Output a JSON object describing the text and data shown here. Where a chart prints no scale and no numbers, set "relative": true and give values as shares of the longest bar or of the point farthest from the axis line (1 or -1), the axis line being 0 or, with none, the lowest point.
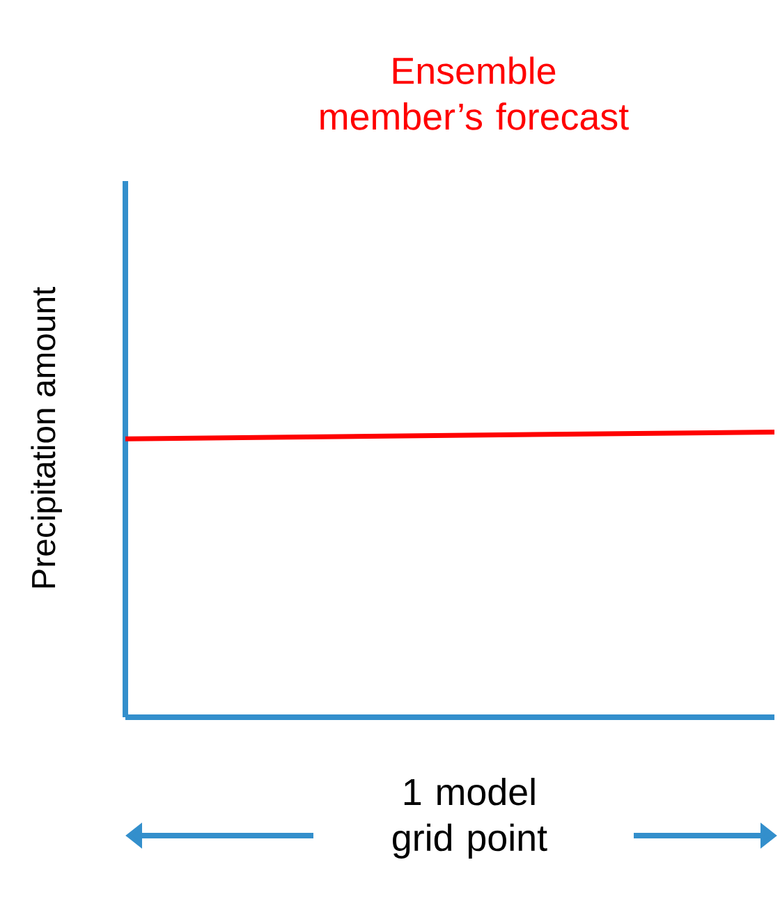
{
  "chart_data": {
    "type": "line",
    "title": "Ensemble member’s forecast",
    "xlabel": "1 model grid point",
    "ylabel": "Precipitation amount",
    "relative": true,
    "categories": [
      null,
      null
    ],
    "series": [
      {
        "color": "#ff0000",
        "values": [
          0.976,
          1
        ]
      }
    ]
  }
}
